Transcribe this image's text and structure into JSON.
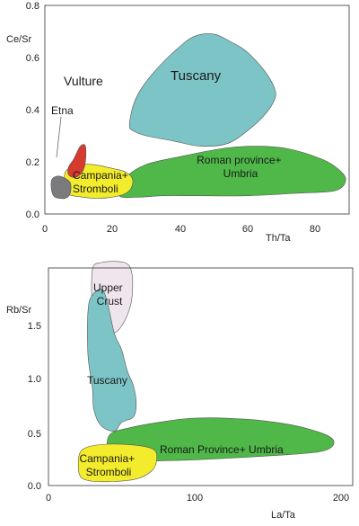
{
  "chart_data": [
    {
      "type": "scatter",
      "xlabel": "Th/Ta",
      "ylabel": "Ce/Sr",
      "xlim": [
        0,
        90
      ],
      "ylim": [
        0,
        0.8
      ],
      "x_ticks": [
        "0",
        "20",
        "40",
        "60",
        "80"
      ],
      "y_ticks": [
        "0.0",
        "0.2",
        "0.4",
        "0.6",
        "0.8"
      ],
      "grid": false,
      "fields": [
        {
          "label": "Tuscany",
          "color": "#7cc4c6",
          "polygon": [
            [
              26,
              0.41
            ],
            [
              25,
              0.34
            ],
            [
              26,
              0.32
            ],
            [
              30,
              0.3
            ],
            [
              38,
              0.28
            ],
            [
              46,
              0.26
            ],
            [
              54,
              0.27
            ],
            [
              60,
              0.32
            ],
            [
              65,
              0.38
            ],
            [
              68,
              0.44
            ],
            [
              68,
              0.48
            ],
            [
              66,
              0.53
            ],
            [
              63,
              0.58
            ],
            [
              59,
              0.63
            ],
            [
              55,
              0.66
            ],
            [
              50,
              0.69
            ],
            [
              44,
              0.68
            ],
            [
              38,
              0.62
            ],
            [
              32,
              0.54
            ],
            [
              28,
              0.47
            ]
          ]
        },
        {
          "label": "Roman province+\nUmbria",
          "color": "#4fb848",
          "polygon": [
            [
              22,
              0.07
            ],
            [
              24,
              0.14
            ],
            [
              30,
              0.19
            ],
            [
              40,
              0.22
            ],
            [
              52,
              0.25
            ],
            [
              62,
              0.26
            ],
            [
              72,
              0.25
            ],
            [
              82,
              0.21
            ],
            [
              87,
              0.17
            ],
            [
              89,
              0.13
            ],
            [
              86,
              0.09
            ],
            [
              75,
              0.08
            ],
            [
              60,
              0.07
            ],
            [
              45,
              0.07
            ],
            [
              35,
              0.07
            ],
            [
              28,
              0.065
            ]
          ]
        },
        {
          "label": "Campania+\nStromboli",
          "color": "#f3ec2c",
          "polygon": [
            [
              6,
              0.1
            ],
            [
              6,
              0.16
            ],
            [
              9,
              0.185
            ],
            [
              14,
              0.19
            ],
            [
              20,
              0.175
            ],
            [
              24,
              0.16
            ],
            [
              26,
              0.13
            ],
            [
              25,
              0.09
            ],
            [
              22,
              0.07
            ],
            [
              16,
              0.06
            ],
            [
              11,
              0.065
            ],
            [
              7,
              0.075
            ]
          ]
        },
        {
          "label": "Vulture",
          "color": "#d63b2f",
          "polygon": [
            [
              7,
              0.15
            ],
            [
              7,
              0.18
            ],
            [
              8.5,
              0.21
            ],
            [
              10.5,
              0.26
            ],
            [
              12,
              0.26
            ],
            [
              12,
              0.2
            ],
            [
              11,
              0.16
            ],
            [
              9,
              0.14
            ]
          ]
        },
        {
          "label": "Etna",
          "color": "#7b7a7c",
          "polygon": [
            [
              2,
              0.09
            ],
            [
              2,
              0.13
            ],
            [
              3.5,
              0.145
            ],
            [
              5.5,
              0.14
            ],
            [
              7.5,
              0.12
            ],
            [
              7.5,
              0.08
            ],
            [
              6,
              0.06
            ],
            [
              3,
              0.065
            ]
          ]
        }
      ]
    },
    {
      "type": "scatter",
      "xlabel": "La/Ta",
      "ylabel": "Rb/Sr",
      "xlim": [
        0,
        200
      ],
      "ylim": [
        0,
        2.0
      ],
      "x_ticks": [
        "0",
        "100",
        "200"
      ],
      "y_ticks": [
        "0.0",
        "0.5",
        "1.0",
        "1.5"
      ],
      "grid": false,
      "fields": [
        {
          "label": "Upper\nCrust",
          "color": "#efe6ed",
          "polygon": [
            [
              30,
              1.62
            ],
            [
              30,
              1.98
            ],
            [
              36,
              2.05
            ],
            [
              52,
              2.05
            ],
            [
              57,
              1.95
            ],
            [
              57,
              1.72
            ],
            [
              53,
              1.54
            ],
            [
              46,
              1.41
            ],
            [
              38,
              1.43
            ],
            [
              33,
              1.52
            ]
          ]
        },
        {
          "label": "Tuscany",
          "color": "#7cc4c6",
          "polygon": [
            [
              27,
              1.2
            ],
            [
              27,
              1.6
            ],
            [
              30,
              1.75
            ],
            [
              38,
              1.78
            ],
            [
              45,
              1.4
            ],
            [
              50,
              1.25
            ],
            [
              54,
              1.05
            ],
            [
              58,
              0.92
            ],
            [
              60,
              0.75
            ],
            [
              58,
              0.63
            ],
            [
              50,
              0.58
            ],
            [
              45,
              0.5
            ],
            [
              36,
              0.55
            ],
            [
              31,
              0.7
            ],
            [
              30,
              0.9
            ]
          ]
        },
        {
          "label": "Roman Province+ Umbria",
          "color": "#4fb848",
          "polygon": [
            [
              40,
              0.38
            ],
            [
              43,
              0.48
            ],
            [
              55,
              0.53
            ],
            [
              75,
              0.58
            ],
            [
              100,
              0.62
            ],
            [
              135,
              0.61
            ],
            [
              165,
              0.56
            ],
            [
              185,
              0.49
            ],
            [
              194,
              0.43
            ],
            [
              194,
              0.36
            ],
            [
              185,
              0.31
            ],
            [
              160,
              0.28
            ],
            [
              120,
              0.25
            ],
            [
              85,
              0.23
            ],
            [
              55,
              0.23
            ],
            [
              42,
              0.27
            ]
          ]
        },
        {
          "label": "Campania+\nStromboli",
          "color": "#f3ec2c",
          "polygon": [
            [
              21,
              0.11
            ],
            [
              21,
              0.28
            ],
            [
              26,
              0.35
            ],
            [
              40,
              0.38
            ],
            [
              60,
              0.37
            ],
            [
              72,
              0.33
            ],
            [
              74,
              0.24
            ],
            [
              71,
              0.14
            ],
            [
              60,
              0.06
            ],
            [
              40,
              0.035
            ],
            [
              26,
              0.05
            ]
          ]
        }
      ]
    }
  ]
}
